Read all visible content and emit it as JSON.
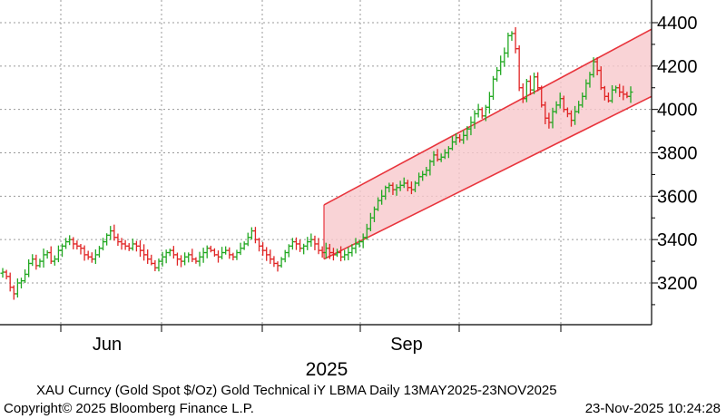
{
  "chart_data": {
    "type": "candlestick",
    "title": "XAU Curncy (Gold Spot   $/Oz) Gold Technical iY LBMA Daily 13MAY2025-23NOV2025",
    "x_tick_labels": [
      "Jun",
      "Sep"
    ],
    "year_label": "2025",
    "y_ticks": [
      3200,
      3400,
      3600,
      3800,
      4000,
      4200,
      4400
    ],
    "ylim": [
      3000,
      4500
    ],
    "grid": true,
    "y_axis_side": "right",
    "date_range": [
      "2025-05-13",
      "2025-11-23"
    ],
    "colors": {
      "up": "#22a822",
      "down": "#e02424",
      "channel_fill": "#f8c8cc",
      "channel_line": "#e8343c",
      "grid": "#9a9a9a"
    },
    "series": [
      {
        "close": [
          3250,
          3230,
          3180,
          3150,
          3200,
          3210,
          3240,
          3290,
          3310,
          3280,
          3300,
          3330,
          3340,
          3300,
          3310,
          3350,
          3370,
          3390,
          3400,
          3380,
          3370,
          3360,
          3330,
          3320,
          3310,
          3330,
          3360,
          3390,
          3420,
          3440,
          3410,
          3390,
          3380,
          3370,
          3360,
          3380,
          3370,
          3350,
          3330,
          3310,
          3290,
          3270,
          3300,
          3320,
          3340,
          3350,
          3330,
          3310,
          3300,
          3320,
          3330,
          3310,
          3300,
          3320,
          3340,
          3360,
          3350,
          3330,
          3320,
          3340,
          3350,
          3330,
          3320,
          3340,
          3360,
          3380,
          3410,
          3440,
          3400,
          3370,
          3350,
          3330,
          3310,
          3290,
          3280,
          3310,
          3340,
          3370,
          3390,
          3380,
          3360,
          3370,
          3390,
          3400,
          3380,
          3350,
          3340,
          3360,
          3340,
          3330,
          3340,
          3320,
          3330,
          3340,
          3360,
          3380,
          3390,
          3410,
          3450,
          3500,
          3540,
          3580,
          3600,
          3640,
          3650,
          3630,
          3640,
          3650,
          3660,
          3640,
          3630,
          3660,
          3690,
          3700,
          3720,
          3760,
          3790,
          3770,
          3780,
          3800,
          3820,
          3850,
          3870,
          3860,
          3880,
          3910,
          3940,
          3980,
          4000,
          3970,
          4010,
          4060,
          4140,
          4180,
          4220,
          4260,
          4340,
          4350,
          4280,
          4100,
          4050,
          4130,
          4090,
          4150,
          4100,
          4020,
          3960,
          3940,
          3990,
          4020,
          4050,
          4000,
          3980,
          3950,
          3990,
          4020,
          4060,
          4120,
          4160,
          4220,
          4180,
          4100,
          4060,
          4040,
          4090,
          4100,
          4080,
          4070,
          4060,
          4080
        ]
      }
    ],
    "channel": {
      "lower": [
        3310,
        4060
      ],
      "upper": [
        3560,
        4370
      ]
    }
  },
  "footer": {
    "caption": "XAU Curncy (Gold Spot   $/Oz) Gold Technical iY LBMA Daily 13MAY2025-23NOV2025",
    "copyright": "Copyright© 2025 Bloomberg Finance L.P.",
    "timestamp": "23-Nov-2025 10:24:28"
  }
}
